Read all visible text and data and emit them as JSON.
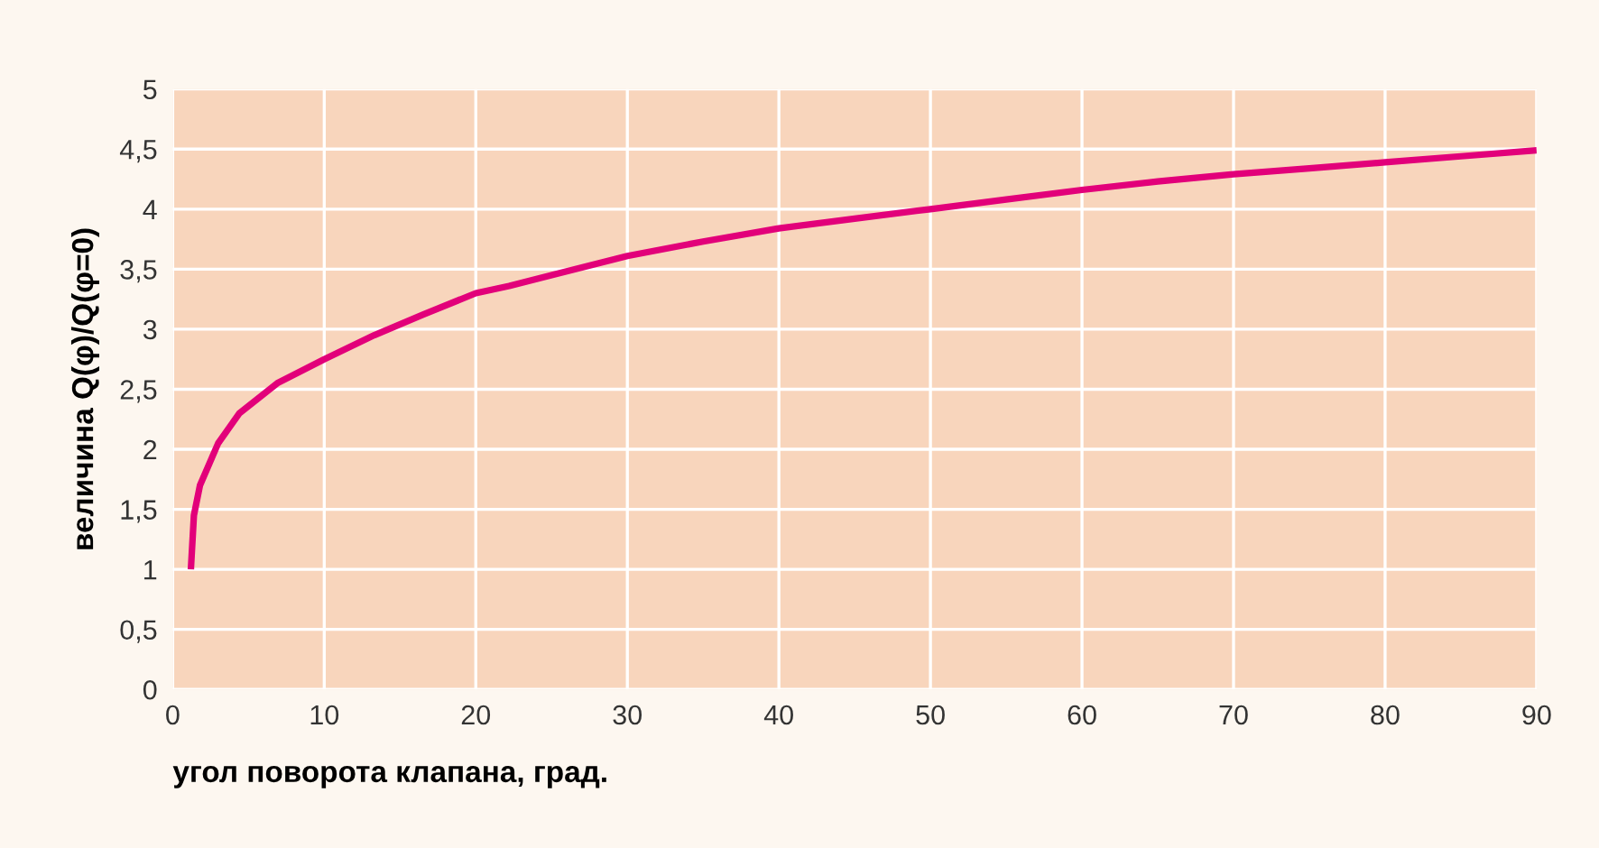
{
  "chart_data": {
    "type": "line",
    "xlabel": "угол поворота клапана, град.",
    "ylabel": "величина Q(φ)/Q(φ=0)",
    "x": [
      1.2,
      1.4,
      1.8,
      3.0,
      4.4,
      6.9,
      10,
      13.3,
      16.5,
      20,
      22.2,
      25,
      30,
      35,
      40,
      45,
      50,
      55,
      60,
      65,
      70,
      75,
      80,
      85,
      90
    ],
    "series": [
      {
        "color": "#e2007a",
        "values": [
          1.0,
          1.45,
          1.7,
          2.05,
          2.3,
          2.55,
          2.75,
          2.95,
          3.12,
          3.3,
          3.36,
          3.45,
          3.61,
          3.73,
          3.84,
          3.92,
          4.0,
          4.08,
          4.16,
          4.23,
          4.29,
          4.34,
          4.39,
          4.44,
          4.49
        ]
      }
    ],
    "xlim": [
      0,
      90
    ],
    "ylim": [
      0,
      5
    ],
    "xticks": [
      0,
      10,
      20,
      30,
      40,
      50,
      60,
      70,
      80,
      90
    ],
    "yticks": [
      0,
      {
        "value": 0.5,
        "label": "0,5"
      },
      1,
      {
        "value": 1.5,
        "label": "1,5"
      },
      2,
      {
        "value": 2.5,
        "label": "2,5"
      },
      3,
      {
        "value": 3.5,
        "label": "3,5"
      },
      4,
      {
        "value": 4.5,
        "label": "4,5"
      },
      5
    ],
    "grid": true,
    "legend": false,
    "marker": "none",
    "line_style": "solid"
  }
}
